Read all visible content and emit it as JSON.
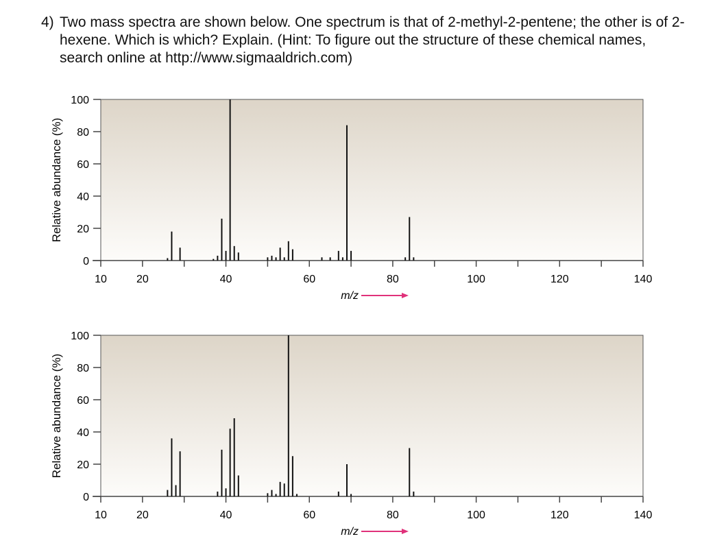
{
  "question": {
    "number": "4)",
    "text": "Two mass spectra are shown below. One spectrum is that of 2-methyl-2-pentene; the other is of 2-hexene. Which is which? Explain.  (Hint: To figure out the structure of these chemical names, search online at http://www.sigmaaldrich.com)"
  },
  "colors": {
    "plot_top": "#ddd5c8",
    "plot_bottom": "#fdfcfa",
    "arrow": "#e0317a",
    "bars": "#111111"
  },
  "chart_data": [
    {
      "type": "bar",
      "xlabel": "m/z",
      "ylabel": "Relative abundance (%)",
      "xlim": [
        10,
        140
      ],
      "ylim": [
        0,
        100
      ],
      "xticks": [
        10,
        20,
        30,
        40,
        50,
        60,
        70,
        80,
        90,
        100,
        110,
        120,
        130,
        140
      ],
      "xtick_labels": [
        "10",
        "20",
        "40",
        "60",
        "80",
        "100",
        "120",
        "140"
      ],
      "yticks": [
        "0",
        "20",
        "40",
        "60",
        "80",
        "100"
      ],
      "grid": false,
      "x": [
        26,
        27,
        29,
        37,
        38,
        39,
        40,
        41,
        42,
        43,
        50,
        51,
        52,
        53,
        54,
        55,
        56,
        63,
        65,
        67,
        68,
        69,
        70,
        83,
        84,
        85
      ],
      "values": [
        1.5,
        18,
        8,
        1,
        3,
        26,
        6,
        100,
        9,
        5,
        2,
        3,
        2,
        8,
        2,
        12,
        7,
        2,
        2,
        6,
        2,
        84,
        6,
        2,
        27,
        2
      ]
    },
    {
      "type": "bar",
      "xlabel": "m/z",
      "ylabel": "Relative abundance (%)",
      "xlim": [
        10,
        140
      ],
      "ylim": [
        0,
        100
      ],
      "xticks": [
        10,
        20,
        30,
        40,
        50,
        60,
        70,
        80,
        90,
        100,
        110,
        120,
        130,
        140
      ],
      "xtick_labels": [
        "10",
        "20",
        "40",
        "60",
        "80",
        "100",
        "120",
        "140"
      ],
      "yticks": [
        "0",
        "20",
        "40",
        "60",
        "80",
        "100"
      ],
      "grid": false,
      "x": [
        26,
        27,
        28,
        29,
        38,
        39,
        40,
        41,
        42,
        43,
        50,
        51,
        52,
        53,
        54,
        55,
        56,
        57,
        67,
        69,
        70,
        84,
        85
      ],
      "values": [
        4,
        36,
        7,
        28,
        3,
        29,
        5,
        42,
        48.5,
        13,
        2,
        4,
        1.5,
        9,
        8,
        100,
        25,
        1.5,
        3,
        20,
        1.5,
        30,
        3
      ]
    }
  ]
}
